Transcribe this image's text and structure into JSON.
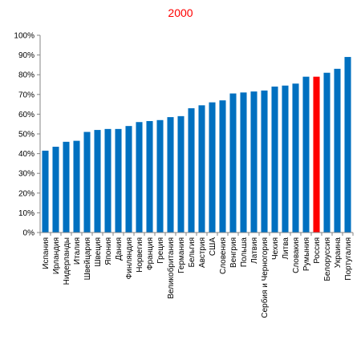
{
  "chart_data": {
    "type": "bar",
    "title": "2000",
    "title_color": "#ff0000",
    "xlabel": "",
    "ylabel": "",
    "ylim": [
      0,
      100
    ],
    "y_ticks": [
      0,
      10,
      20,
      30,
      40,
      50,
      60,
      70,
      80,
      90,
      100
    ],
    "y_tick_suffix": "%",
    "grid": false,
    "legend": "none",
    "bar_color": "#0070c0",
    "highlight_color": "#ff0000",
    "highlight_category": "Россия",
    "categories": [
      "Испания",
      "Ирландия",
      "Нидерланды",
      "Италия",
      "Швейцария",
      "Швеция",
      "Япония",
      "Дания",
      "Финляндия",
      "Норвегия",
      "Франция",
      "Греция",
      "Великобритания",
      "Германия",
      "Бельгия",
      "Австрия",
      "США",
      "Словения",
      "Венгрия",
      "Польша",
      "Латвия",
      "Сербия и Черногория",
      "Чехия",
      "Литва",
      "Словакия",
      "Румыния",
      "Россия",
      "Белоруссия",
      "Украина",
      "Португалия"
    ],
    "values": [
      41.5,
      43.5,
      46,
      46.5,
      51,
      52,
      52.5,
      52.5,
      54,
      56,
      56.5,
      57,
      58.5,
      59,
      63,
      64.5,
      66,
      67,
      70.5,
      71,
      71.5,
      72,
      74,
      74.5,
      75.5,
      79,
      79,
      81,
      83,
      89
    ]
  }
}
